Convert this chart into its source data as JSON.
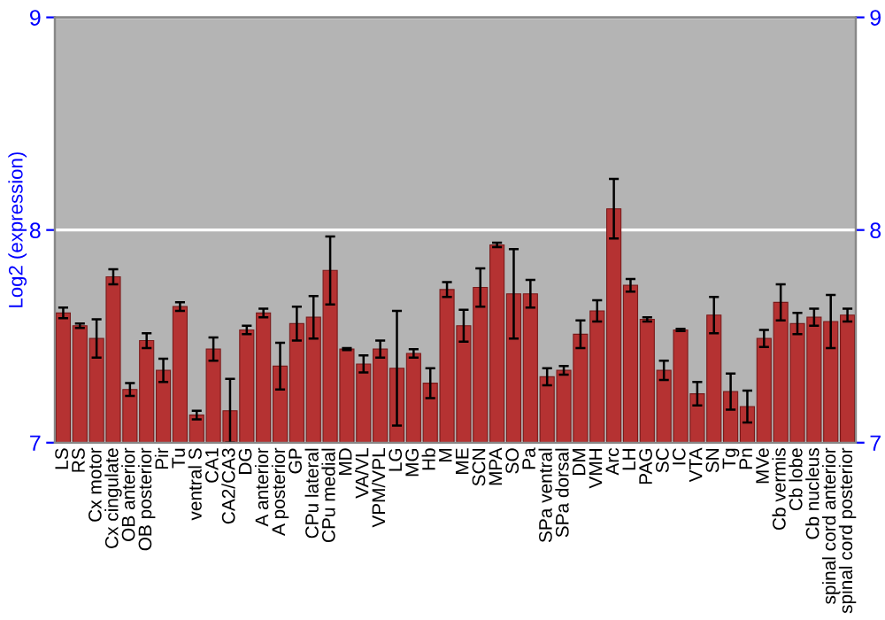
{
  "chart_data": {
    "type": "bar",
    "ylabel": "Log2 (expression)",
    "categories": [
      "LS",
      "RS",
      "Cx motor",
      "Cx cingulate",
      "OB anterior",
      "OB posterior",
      "Pir",
      "Tu",
      "ventral S",
      "CA1",
      "CA2/CA3",
      "DG",
      "A anterior",
      "A posterior",
      "GP",
      "CPu lateral",
      "CPu medial",
      "MD",
      "VA/VL",
      "VPM/VPL",
      "LG",
      "MG",
      "Hb",
      "M",
      "ME",
      "SCN",
      "MPA",
      "SO",
      "Pa",
      "SPa ventral",
      "SPa dorsal",
      "DM",
      "VMH",
      "Arc",
      "LH",
      "PAG",
      "SC",
      "IC",
      "VTA",
      "SN",
      "Tg",
      "Pn",
      "MVe",
      "Cb vermis",
      "Cb lobe",
      "Cb nucleus",
      "spinal cord anterior",
      "spinal cord posterior"
    ],
    "values": [
      7.61,
      7.55,
      7.49,
      7.78,
      7.25,
      7.48,
      7.34,
      7.64,
      7.13,
      7.44,
      7.15,
      7.53,
      7.61,
      7.36,
      7.56,
      7.59,
      7.81,
      7.44,
      7.37,
      7.44,
      7.35,
      7.42,
      7.28,
      7.72,
      7.55,
      7.73,
      7.93,
      7.7,
      7.7,
      7.31,
      7.34,
      7.51,
      7.62,
      8.1,
      7.74,
      7.58,
      7.34,
      7.53,
      7.23,
      7.6,
      7.24,
      7.17,
      7.49,
      7.66,
      7.56,
      7.59,
      7.57,
      7.6
    ],
    "errors": [
      0.025,
      0.01,
      0.09,
      0.035,
      0.03,
      0.035,
      0.055,
      0.02,
      0.02,
      0.055,
      0.15,
      0.02,
      0.02,
      0.11,
      0.08,
      0.1,
      0.16,
      0.005,
      0.04,
      0.04,
      0.27,
      0.02,
      0.07,
      0.035,
      0.075,
      0.09,
      0.01,
      0.21,
      0.065,
      0.04,
      0.02,
      0.065,
      0.05,
      0.14,
      0.03,
      0.01,
      0.045,
      0.005,
      0.055,
      0.085,
      0.085,
      0.075,
      0.04,
      0.085,
      0.05,
      0.04,
      0.125,
      0.03
    ],
    "color": "#b53232",
    "ylim": [
      7,
      9
    ],
    "yticks": [
      7,
      8,
      9
    ],
    "y2lim": [
      7,
      9
    ],
    "y2ticks": [
      7,
      8,
      9
    ],
    "grid": "y"
  }
}
